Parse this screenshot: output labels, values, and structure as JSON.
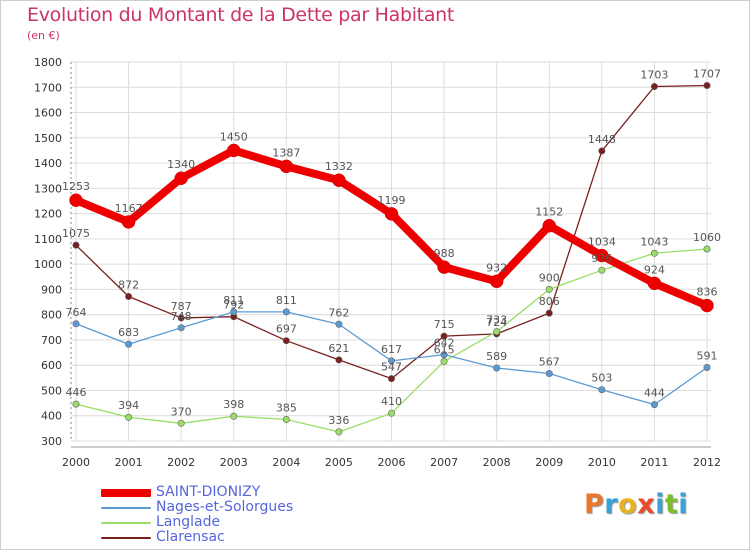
{
  "chart_data": {
    "type": "line",
    "title": "Evolution du Montant de la Dette par Habitant",
    "subtitle": "(en €)",
    "x": [
      2000,
      2001,
      2002,
      2003,
      2004,
      2005,
      2006,
      2007,
      2008,
      2009,
      2010,
      2011,
      2012
    ],
    "ylim": [
      300,
      1800
    ],
    "yticks": [
      300,
      400,
      500,
      600,
      700,
      800,
      900,
      1000,
      1100,
      1200,
      1300,
      1400,
      1500,
      1600,
      1700,
      1800
    ],
    "grid": true,
    "legend_position": "bottom-left",
    "series": [
      {
        "name": "SAINT-DIONIZY",
        "color": "#ee0000",
        "values": [
          1253,
          1167,
          1340,
          1450,
          1387,
          1332,
          1199,
          988,
          932,
          1152,
          1034,
          924,
          836
        ]
      },
      {
        "name": "Nages-et-Solorgues",
        "color": "#5b9bd5",
        "values": [
          764,
          683,
          748,
          811,
          811,
          762,
          617,
          642,
          589,
          567,
          503,
          444,
          591
        ]
      },
      {
        "name": "Langlade",
        "color": "#99dd66",
        "values": [
          446,
          394,
          370,
          398,
          385,
          336,
          410,
          615,
          733,
          900,
          976,
          1043,
          1060
        ]
      },
      {
        "name": "Clarensac",
        "color": "#7a1f1f",
        "values": [
          1075,
          872,
          787,
          792,
          697,
          621,
          547,
          715,
          724,
          806,
          1448,
          1703,
          1707
        ]
      }
    ]
  },
  "logo": {
    "letters": [
      "P",
      "r",
      "o",
      "x",
      "i",
      "t",
      "i"
    ],
    "colors": [
      "#e8762b",
      "#3aa0d8",
      "#e8b322",
      "#e84a2b",
      "#3aa0d8",
      "#7bbf2a",
      "#3aa0d8"
    ]
  }
}
